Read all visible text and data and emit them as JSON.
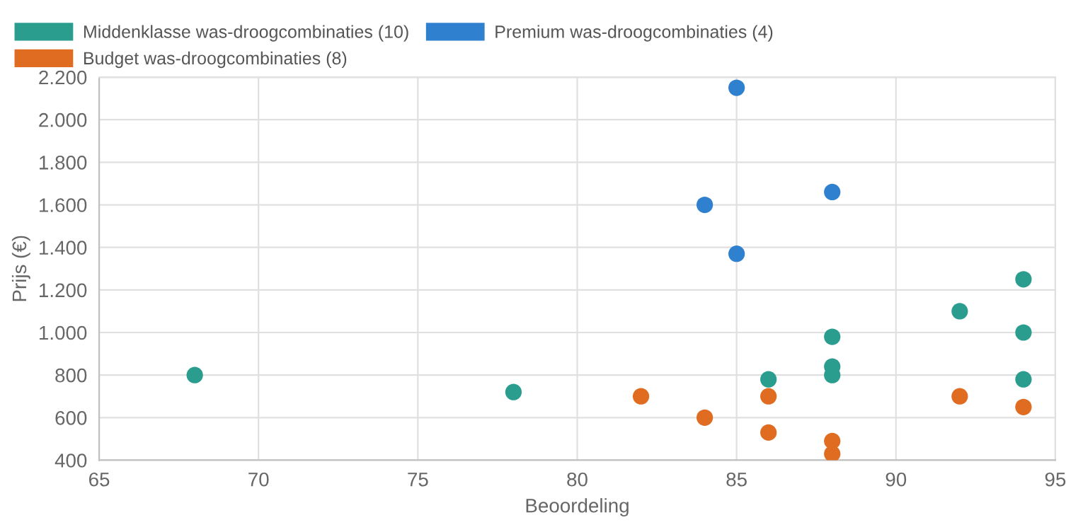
{
  "chart_data": {
    "type": "scatter",
    "xlabel": "Beoordeling",
    "ylabel": "Prijs (€)",
    "series": [
      {
        "name": "Middenklasse was-droogcombinaties (10)",
        "color": "#2a9d8f",
        "x": [
          68,
          78,
          86,
          88,
          88,
          88,
          92,
          94,
          94,
          94
        ],
        "values": [
          800,
          720,
          780,
          980,
          840,
          800,
          1100,
          1250,
          1000,
          780
        ]
      },
      {
        "name": "Budget was-droogcombinaties (8)",
        "color": "#e06c22",
        "x": [
          82,
          86,
          84,
          86,
          88,
          88,
          92,
          94
        ],
        "values": [
          700,
          700,
          600,
          530,
          490,
          430,
          700,
          650
        ]
      },
      {
        "name": "Premium was-droogcombinaties (4)",
        "color": "#2f80cf",
        "x": [
          85,
          84,
          88,
          85
        ],
        "values": [
          2150,
          1600,
          1660,
          1370
        ]
      }
    ],
    "xlim": [
      65,
      95
    ],
    "xticks": [
      65,
      70,
      75,
      80,
      85,
      90,
      95
    ],
    "ylim": [
      400,
      2200
    ],
    "yticks": [
      {
        "value": 400,
        "label": "400"
      },
      {
        "value": 600,
        "label": "600"
      },
      {
        "value": 800,
        "label": "800"
      },
      {
        "value": 1000,
        "label": "1.000"
      },
      {
        "value": 1200,
        "label": "1.200"
      },
      {
        "value": 1400,
        "label": "1.400"
      },
      {
        "value": 1600,
        "label": "1.600"
      },
      {
        "value": 1800,
        "label": "1.800"
      },
      {
        "value": 2000,
        "label": "2.000"
      },
      {
        "value": 2200,
        "label": "2.200"
      }
    ],
    "grid": true,
    "legend": "top left",
    "marker": "circle"
  }
}
